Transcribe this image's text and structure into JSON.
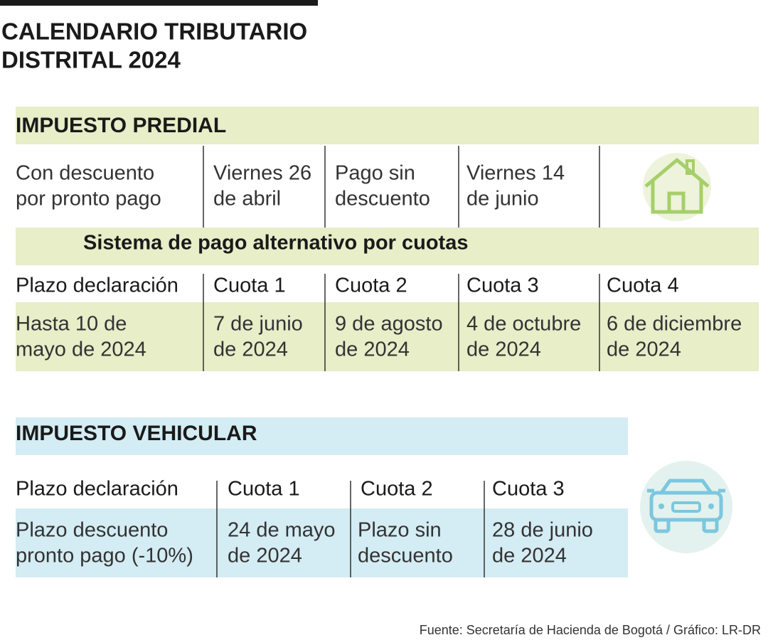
{
  "title_lines": [
    "CALENDARIO TRIBUTARIO",
    "DISTRITAL 2024"
  ],
  "predial": {
    "heading": "IMPUESTO PREDIAL",
    "cells": [
      [
        "Con descuento",
        "por pronto pago"
      ],
      [
        "Viernes 26",
        "de abril"
      ],
      [
        "Pago sin",
        "descuento"
      ],
      [
        "Viernes 14",
        "de junio"
      ]
    ],
    "subheading": "Sistema de pago alternativo por cuotas",
    "headers": [
      "Plazo declaración",
      "Cuota 1",
      "Cuota 2",
      "Cuota 3",
      "Cuota 4"
    ],
    "dates": [
      [
        "Hasta 10 de",
        "mayo de 2024"
      ],
      [
        "7 de junio",
        "de 2024"
      ],
      [
        "9 de agosto",
        "de 2024"
      ],
      [
        "4 de octubre",
        "de 2024"
      ],
      [
        "6 de diciembre",
        "de 2024"
      ]
    ]
  },
  "vehicular": {
    "heading": "IMPUESTO VEHICULAR",
    "headers": [
      "Plazo declaración",
      "Cuota 1",
      "Cuota 2",
      "Cuota 3"
    ],
    "cells": [
      [
        "Plazo descuento",
        "pronto pago (-10%)"
      ],
      [
        "24 de mayo",
        "de 2024"
      ],
      [
        "Plazo sin",
        "descuento"
      ],
      [
        "28 de junio",
        "de 2024"
      ]
    ]
  },
  "source": "Fuente: Secretaría de Hacienda de Bogotá  / Gráfico: LR-DR"
}
